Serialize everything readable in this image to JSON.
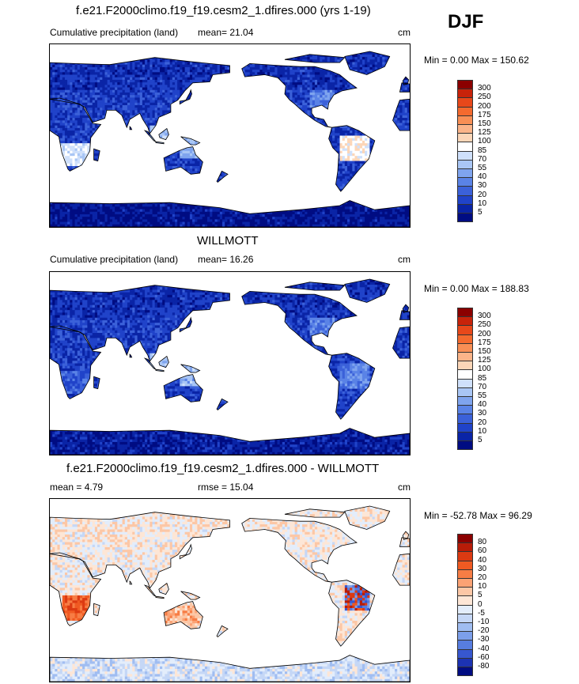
{
  "season": "DJF",
  "unit": "cm",
  "panels": [
    {
      "title": "f.e21.F2000climo.f19_f19.cesm2_1.dfires.000 (yrs 1-19)",
      "left_label": "Cumulative precipitation (land)",
      "mean_label": "mean=  21.04",
      "minmax": "Min =   0.00 Max = 150.62",
      "levels": [
        "300",
        "250",
        "200",
        "175",
        "150",
        "125",
        "100",
        "85",
        "70",
        "55",
        "40",
        "30",
        "20",
        "10",
        "5"
      ],
      "colors": [
        "#8b0000",
        "#c8230a",
        "#e8481a",
        "#f46a2e",
        "#f88f55",
        "#fbb489",
        "#fcd6b8",
        "#ffffff",
        "#cfe0fb",
        "#a9c6f5",
        "#7fa4ee",
        "#5a83e6",
        "#3b61d9",
        "#2043c9",
        "#0a24a6",
        "#000c82"
      ]
    },
    {
      "title": "WILLMOTT",
      "left_label": "Cumulative precipitation (land)",
      "mean_label": "mean=  16.26",
      "minmax": "Min =   0.00 Max = 188.83",
      "levels": [
        "300",
        "250",
        "200",
        "175",
        "150",
        "125",
        "100",
        "85",
        "70",
        "55",
        "40",
        "30",
        "20",
        "10",
        "5"
      ],
      "colors": [
        "#8b0000",
        "#c8230a",
        "#e8481a",
        "#f46a2e",
        "#f88f55",
        "#fbb489",
        "#fcd6b8",
        "#ffffff",
        "#cfe0fb",
        "#a9c6f5",
        "#7fa4ee",
        "#5a83e6",
        "#3b61d9",
        "#2043c9",
        "#0a24a6",
        "#000c82"
      ]
    },
    {
      "title": "f.e21.F2000climo.f19_f19.cesm2_1.dfires.000 - WILLMOTT",
      "left_label": "mean =   4.79",
      "mean_label": "rmse =  15.04",
      "minmax": "Min = -52.78 Max =  96.29",
      "levels": [
        "80",
        "60",
        "40",
        "30",
        "20",
        "10",
        "5",
        "0",
        "-5",
        "-10",
        "-20",
        "-30",
        "-40",
        "-60",
        "-80"
      ],
      "colors": [
        "#8b0000",
        "#b81c08",
        "#dc3a12",
        "#f05a22",
        "#f77d45",
        "#fba274",
        "#fcc7a6",
        "#fde6d6",
        "#e3edfb",
        "#c5d7f6",
        "#a0bdf1",
        "#7c9fea",
        "#577de0",
        "#3757cf",
        "#1c33b3",
        "#000c82"
      ]
    }
  ]
}
